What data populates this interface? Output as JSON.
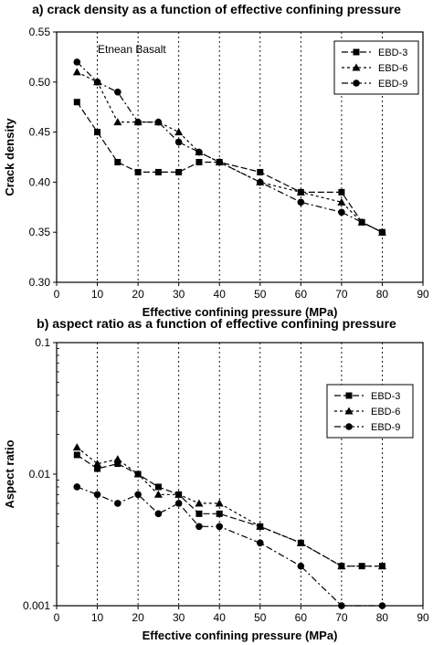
{
  "chart_data": [
    {
      "type": "line",
      "title": "a) crack density as a function of effective confining pressure",
      "xlabel": "Effective confining pressure (MPa)",
      "ylabel": "Crack density",
      "annotation": "Etnean Basalt",
      "xlim": [
        0,
        90
      ],
      "ylim": [
        0.3,
        0.55
      ],
      "xticks": [
        0,
        10,
        20,
        30,
        40,
        50,
        60,
        70,
        80,
        90
      ],
      "yticks": [
        0.3,
        0.35,
        0.4,
        0.45,
        0.5,
        0.55
      ],
      "ytick_labels": [
        "0.30",
        "0.35",
        "0.40",
        "0.45",
        "0.50",
        "0.55"
      ],
      "yscale": "linear",
      "grid": "vertical dotted",
      "legend_position": "top-right",
      "series": [
        {
          "name": "EBD-3",
          "marker": "square",
          "x": [
            5,
            10,
            15,
            20,
            25,
            30,
            35,
            40,
            50,
            60,
            70,
            75,
            80
          ],
          "y": [
            0.48,
            0.45,
            0.42,
            0.41,
            0.41,
            0.41,
            0.42,
            0.42,
            0.41,
            0.39,
            0.39,
            0.36,
            0.35
          ]
        },
        {
          "name": "EBD-6",
          "marker": "triangle",
          "x": [
            5,
            10,
            15,
            20,
            25,
            30,
            35,
            40,
            50,
            60,
            70,
            75,
            80
          ],
          "y": [
            0.51,
            0.5,
            0.46,
            0.46,
            0.46,
            0.45,
            0.43,
            0.42,
            0.4,
            0.39,
            0.38,
            0.36,
            0.35
          ]
        },
        {
          "name": "EBD-9",
          "marker": "circle",
          "x": [
            5,
            10,
            15,
            20,
            25,
            30,
            35,
            40,
            50,
            60,
            70,
            80
          ],
          "y": [
            0.52,
            0.5,
            0.49,
            0.46,
            0.46,
            0.44,
            0.43,
            0.42,
            0.4,
            0.38,
            0.37,
            0.35
          ]
        }
      ]
    },
    {
      "type": "line",
      "title": "b) aspect ratio as a function of effective confining pressure",
      "xlabel": "Effective confining pressure (MPa)",
      "ylabel": "Aspect ratio",
      "xlim": [
        0,
        90
      ],
      "ylim": [
        0.001,
        0.1
      ],
      "xticks": [
        0,
        10,
        20,
        30,
        40,
        50,
        60,
        70,
        80,
        90
      ],
      "yticks": [
        0.001,
        0.01,
        0.1
      ],
      "ytick_labels": [
        "0.001",
        "0.01",
        "0.1"
      ],
      "yscale": "log",
      "grid": "vertical dotted",
      "legend_position": "top-right",
      "series": [
        {
          "name": "EBD-3",
          "marker": "square",
          "x": [
            5,
            10,
            15,
            20,
            25,
            30,
            35,
            40,
            50,
            60,
            70,
            75,
            80
          ],
          "y": [
            0.014,
            0.011,
            0.012,
            0.01,
            0.008,
            0.007,
            0.005,
            0.005,
            0.004,
            0.003,
            0.002,
            0.002,
            0.002
          ]
        },
        {
          "name": "EBD-6",
          "marker": "triangle",
          "x": [
            5,
            10,
            15,
            20,
            25,
            30,
            35,
            40,
            50,
            60,
            70,
            80
          ],
          "y": [
            0.016,
            0.012,
            0.013,
            0.01,
            0.007,
            0.007,
            0.006,
            0.006,
            0.004,
            0.003,
            0.002,
            0.002
          ]
        },
        {
          "name": "EBD-9",
          "marker": "circle",
          "x": [
            5,
            10,
            15,
            20,
            25,
            30,
            35,
            40,
            50,
            60,
            70,
            80
          ],
          "y": [
            0.008,
            0.007,
            0.006,
            0.007,
            0.005,
            0.006,
            0.004,
            0.004,
            0.003,
            0.002,
            0.001,
            0.001
          ]
        }
      ]
    }
  ]
}
